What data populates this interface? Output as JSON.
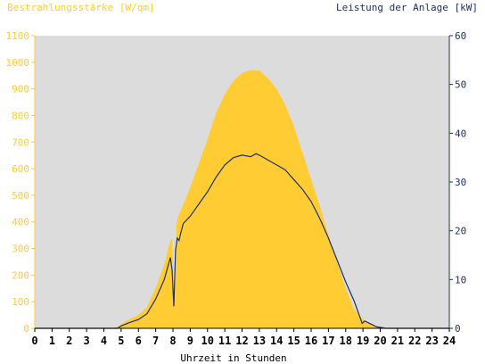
{
  "chart_data": {
    "type": "area",
    "title": "",
    "ylabel_left": "Bestrahlungsstärke [W/qm]",
    "ylabel_right": "Leistung der Anlage [kW]",
    "xlabel": "Uhrzeit in Stunden",
    "xlim": [
      0,
      24
    ],
    "ylim_left": [
      0,
      1100
    ],
    "ylim_right": [
      0,
      60
    ],
    "x_ticks": [
      "0",
      "1",
      "2",
      "3",
      "4",
      "5",
      "6",
      "7",
      "8",
      "9",
      "10",
      "11",
      "12",
      "13",
      "14",
      "15",
      "16",
      "17",
      "18",
      "19",
      "20",
      "21",
      "22",
      "23",
      "24"
    ],
    "y_left_ticks": [
      "0",
      "100",
      "200",
      "300",
      "400",
      "500",
      "600",
      "700",
      "800",
      "900",
      "1000",
      "1100"
    ],
    "y_right_ticks": [
      "0",
      "10",
      "20",
      "30",
      "40",
      "50",
      "60"
    ],
    "grid": false,
    "colors": {
      "plot_background": "#dcdcdc",
      "irradiance_fill": "#ffcc33",
      "power_line": "#1f3068",
      "left_axis": "#ffcc33",
      "right_axis": "#1f3068"
    },
    "series": [
      {
        "name": "Bestrahlungsstärke [W/qm]",
        "axis": "left",
        "style": "area",
        "x": [
          0,
          4.5,
          4.75,
          5.0,
          5.5,
          6.0,
          6.5,
          7.0,
          7.5,
          7.8,
          7.95,
          8.05,
          8.1,
          8.15,
          8.2,
          8.3,
          8.5,
          8.7,
          9.0,
          9.5,
          10.0,
          10.5,
          11.0,
          11.5,
          12.0,
          12.5,
          13.0,
          13.5,
          14.0,
          14.5,
          15.0,
          15.5,
          16.0,
          16.5,
          17.0,
          17.5,
          18.0,
          18.5,
          19.0,
          19.5,
          20.0,
          20.3,
          20.5,
          24
        ],
        "y": [
          0,
          0,
          5,
          15,
          35,
          50,
          80,
          150,
          240,
          320,
          340,
          110,
          90,
          200,
          390,
          420,
          450,
          480,
          530,
          620,
          710,
          810,
          880,
          930,
          960,
          970,
          970,
          940,
          900,
          840,
          760,
          660,
          560,
          460,
          350,
          250,
          150,
          70,
          35,
          12,
          3,
          0,
          0,
          0
        ]
      },
      {
        "name": "Leistung der Anlage [kW]",
        "axis": "right",
        "style": "line",
        "x": [
          0,
          4.8,
          5.0,
          5.5,
          6.0,
          6.5,
          7.0,
          7.5,
          7.85,
          7.95,
          8.05,
          8.15,
          8.25,
          8.35,
          8.45,
          8.6,
          9.0,
          9.5,
          10.0,
          10.5,
          11.0,
          11.5,
          12.0,
          12.5,
          12.8,
          13.0,
          13.5,
          14.0,
          14.5,
          15.0,
          15.5,
          16.0,
          16.5,
          17.0,
          17.5,
          18.0,
          18.5,
          18.8,
          18.95,
          19.1,
          19.5,
          19.8,
          20.0,
          20.3,
          24
        ],
        "y": [
          0,
          0,
          0.5,
          1.2,
          1.8,
          3.0,
          6.0,
          10.0,
          14.5,
          12.0,
          4.5,
          16.0,
          18.5,
          18.0,
          19.5,
          21.5,
          23.0,
          25.5,
          28.0,
          31.0,
          33.5,
          35.0,
          35.5,
          35.2,
          35.8,
          35.5,
          34.5,
          33.5,
          32.5,
          30.5,
          28.5,
          26.0,
          22.5,
          18.5,
          14.0,
          9.5,
          5.5,
          2.5,
          1.0,
          1.5,
          0.8,
          0.3,
          0.2,
          0,
          0
        ]
      }
    ]
  }
}
